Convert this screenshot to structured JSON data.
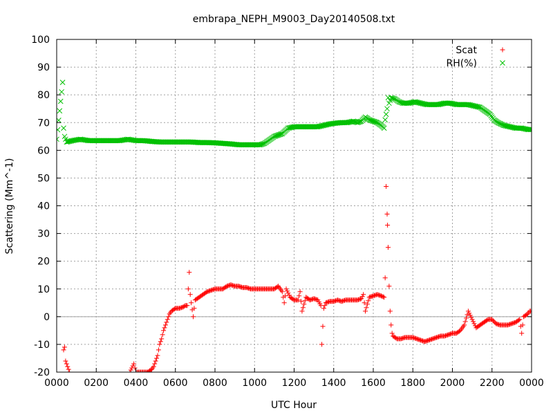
{
  "chart_data": {
    "type": "scatter",
    "title": "embrapa_NEPH_M9003_Day20140508.txt",
    "xlabel": "UTC Hour",
    "ylabel": "Scattering (Mm^-1)",
    "xlim": [
      0,
      24
    ],
    "ylim": [
      -20,
      100
    ],
    "x_ticks": [
      "0000",
      "0200",
      "0400",
      "0600",
      "0800",
      "1000",
      "1200",
      "1400",
      "1600",
      "1800",
      "2000",
      "2200",
      "0000"
    ],
    "y_ticks": [
      "-20",
      "-10",
      "0",
      "10",
      "20",
      "30",
      "40",
      "50",
      "60",
      "70",
      "80",
      "90",
      "100"
    ],
    "grid": true,
    "legend_position": "top-right",
    "series": [
      {
        "name": "Scat",
        "marker": "+",
        "color": "#ff0000",
        "points": [
          [
            0.35,
            -12
          ],
          [
            0.4,
            -11
          ],
          [
            0.45,
            -16
          ],
          [
            0.5,
            -17
          ],
          [
            0.55,
            -18
          ],
          [
            0.6,
            -19
          ],
          [
            0.65,
            -20
          ],
          [
            3.7,
            -20
          ],
          [
            3.9,
            -17
          ],
          [
            4.0,
            -20
          ],
          [
            4.1,
            -20
          ],
          [
            4.3,
            -20
          ],
          [
            4.6,
            -20
          ],
          [
            4.8,
            -19
          ],
          [
            4.9,
            -18
          ],
          [
            5.0,
            -16
          ],
          [
            5.1,
            -14
          ],
          [
            5.15,
            -12
          ],
          [
            5.2,
            -10
          ],
          [
            5.3,
            -8
          ],
          [
            5.4,
            -5
          ],
          [
            5.5,
            -3
          ],
          [
            5.6,
            -1
          ],
          [
            5.7,
            1
          ],
          [
            5.8,
            2
          ],
          [
            6.0,
            3
          ],
          [
            6.2,
            3
          ],
          [
            6.4,
            3.5
          ],
          [
            6.5,
            4
          ],
          [
            6.6,
            4
          ],
          [
            6.7,
            16
          ],
          [
            6.75,
            8
          ],
          [
            6.8,
            5
          ],
          [
            6.9,
            0
          ],
          [
            7.0,
            6
          ],
          [
            7.2,
            7
          ],
          [
            7.4,
            8
          ],
          [
            7.6,
            9
          ],
          [
            7.8,
            9.5
          ],
          [
            8.0,
            10
          ],
          [
            8.2,
            10
          ],
          [
            8.4,
            10
          ],
          [
            8.6,
            11
          ],
          [
            8.8,
            11.5
          ],
          [
            9.0,
            11
          ],
          [
            9.2,
            11
          ],
          [
            9.4,
            10.5
          ],
          [
            9.6,
            10.5
          ],
          [
            9.8,
            10
          ],
          [
            10.0,
            10
          ],
          [
            10.2,
            10
          ],
          [
            10.4,
            10
          ],
          [
            10.6,
            10
          ],
          [
            10.8,
            10
          ],
          [
            11.0,
            10
          ],
          [
            11.2,
            11
          ],
          [
            11.4,
            9
          ],
          [
            11.45,
            7
          ],
          [
            11.5,
            5
          ],
          [
            11.6,
            10
          ],
          [
            11.8,
            7
          ],
          [
            12.0,
            6
          ],
          [
            12.2,
            6
          ],
          [
            12.3,
            9
          ],
          [
            12.4,
            2
          ],
          [
            12.6,
            7
          ],
          [
            12.8,
            6
          ],
          [
            13.0,
            6.5
          ],
          [
            13.2,
            6
          ],
          [
            13.35,
            4
          ],
          [
            13.4,
            -10
          ],
          [
            13.5,
            3
          ],
          [
            13.6,
            5
          ],
          [
            13.8,
            5.5
          ],
          [
            14.0,
            5.5
          ],
          [
            14.2,
            6
          ],
          [
            14.4,
            5.5
          ],
          [
            14.6,
            6
          ],
          [
            14.8,
            6
          ],
          [
            15.0,
            6
          ],
          [
            15.2,
            6
          ],
          [
            15.4,
            6.5
          ],
          [
            15.5,
            8
          ],
          [
            15.6,
            2
          ],
          [
            15.8,
            7
          ],
          [
            16.0,
            7.5
          ],
          [
            16.2,
            8
          ],
          [
            16.4,
            7.5
          ],
          [
            16.55,
            7
          ],
          [
            16.6,
            14
          ],
          [
            16.65,
            47
          ],
          [
            16.7,
            37
          ],
          [
            16.72,
            33
          ],
          [
            16.75,
            25
          ],
          [
            16.8,
            11
          ],
          [
            16.85,
            2
          ],
          [
            16.9,
            -3
          ],
          [
            16.95,
            -6
          ],
          [
            17.0,
            -7
          ],
          [
            17.2,
            -8
          ],
          [
            17.4,
            -8
          ],
          [
            17.6,
            -7.5
          ],
          [
            17.8,
            -7.5
          ],
          [
            18.0,
            -7.5
          ],
          [
            18.2,
            -8
          ],
          [
            18.4,
            -8.5
          ],
          [
            18.6,
            -9
          ],
          [
            18.8,
            -8.5
          ],
          [
            19.0,
            -8
          ],
          [
            19.2,
            -7.5
          ],
          [
            19.4,
            -7
          ],
          [
            19.6,
            -7
          ],
          [
            19.8,
            -6.5
          ],
          [
            20.0,
            -6
          ],
          [
            20.2,
            -6
          ],
          [
            20.4,
            -5
          ],
          [
            20.6,
            -3
          ],
          [
            20.8,
            2
          ],
          [
            21.0,
            -1
          ],
          [
            21.2,
            -4
          ],
          [
            21.4,
            -3
          ],
          [
            21.6,
            -2
          ],
          [
            21.8,
            -1
          ],
          [
            22.0,
            -1
          ],
          [
            22.2,
            -2.5
          ],
          [
            22.4,
            -3
          ],
          [
            22.6,
            -3
          ],
          [
            22.8,
            -3
          ],
          [
            23.0,
            -2.5
          ],
          [
            23.2,
            -2
          ],
          [
            23.4,
            -1
          ],
          [
            23.5,
            -6
          ],
          [
            23.6,
            0
          ],
          [
            23.8,
            1
          ],
          [
            23.9,
            2
          ],
          [
            24.0,
            2
          ]
        ]
      },
      {
        "name": "RH(%)",
        "marker": "x",
        "color": "#00c000",
        "points": [
          [
            0.0,
            64
          ],
          [
            0.3,
            84.5
          ],
          [
            0.35,
            68
          ],
          [
            0.4,
            65
          ],
          [
            0.5,
            63
          ],
          [
            0.8,
            63.5
          ],
          [
            1.2,
            64
          ],
          [
            1.6,
            63.5
          ],
          [
            2.0,
            63.5
          ],
          [
            2.4,
            63.5
          ],
          [
            2.8,
            63.5
          ],
          [
            3.2,
            63.5
          ],
          [
            3.6,
            64
          ],
          [
            4.0,
            63.5
          ],
          [
            4.4,
            63.5
          ],
          [
            4.8,
            63.2
          ],
          [
            5.2,
            63
          ],
          [
            5.6,
            63
          ],
          [
            6.0,
            63
          ],
          [
            6.4,
            63
          ],
          [
            6.8,
            63
          ],
          [
            7.2,
            62.8
          ],
          [
            7.6,
            62.8
          ],
          [
            8.0,
            62.7
          ],
          [
            8.4,
            62.5
          ],
          [
            8.8,
            62.3
          ],
          [
            9.2,
            62
          ],
          [
            9.6,
            62
          ],
          [
            10.0,
            62
          ],
          [
            10.3,
            62
          ],
          [
            10.5,
            62.5
          ],
          [
            10.8,
            64
          ],
          [
            11.0,
            65
          ],
          [
            11.4,
            66
          ],
          [
            11.7,
            68
          ],
          [
            12.0,
            68.5
          ],
          [
            12.3,
            68.5
          ],
          [
            12.6,
            68.5
          ],
          [
            12.9,
            68.5
          ],
          [
            13.2,
            68.5
          ],
          [
            13.5,
            69
          ],
          [
            13.8,
            69.5
          ],
          [
            14.1,
            69.8
          ],
          [
            14.4,
            70
          ],
          [
            14.7,
            70
          ],
          [
            15.0,
            70.5
          ],
          [
            15.2,
            70
          ],
          [
            15.4,
            70.5
          ],
          [
            15.6,
            72
          ],
          [
            15.8,
            71
          ],
          [
            16.0,
            70.5
          ],
          [
            16.2,
            70
          ],
          [
            16.4,
            69
          ],
          [
            16.55,
            68
          ],
          [
            16.6,
            71
          ],
          [
            16.7,
            75
          ],
          [
            16.75,
            79
          ],
          [
            16.8,
            77
          ],
          [
            16.9,
            79
          ],
          [
            17.1,
            78.5
          ],
          [
            17.3,
            77.5
          ],
          [
            17.5,
            77
          ],
          [
            17.8,
            77
          ],
          [
            18.1,
            77.5
          ],
          [
            18.4,
            77
          ],
          [
            18.7,
            76.5
          ],
          [
            19.0,
            76.5
          ],
          [
            19.3,
            76.5
          ],
          [
            19.6,
            77
          ],
          [
            19.9,
            77
          ],
          [
            20.2,
            76.5
          ],
          [
            20.5,
            76.5
          ],
          [
            20.8,
            76.5
          ],
          [
            21.1,
            76
          ],
          [
            21.4,
            75.5
          ],
          [
            21.7,
            74
          ],
          [
            21.9,
            73
          ],
          [
            22.1,
            71
          ],
          [
            22.3,
            70
          ],
          [
            22.6,
            69
          ],
          [
            22.9,
            68.5
          ],
          [
            23.2,
            68
          ],
          [
            23.5,
            68
          ],
          [
            23.8,
            67.5
          ],
          [
            24.0,
            67.5
          ]
        ]
      }
    ]
  }
}
